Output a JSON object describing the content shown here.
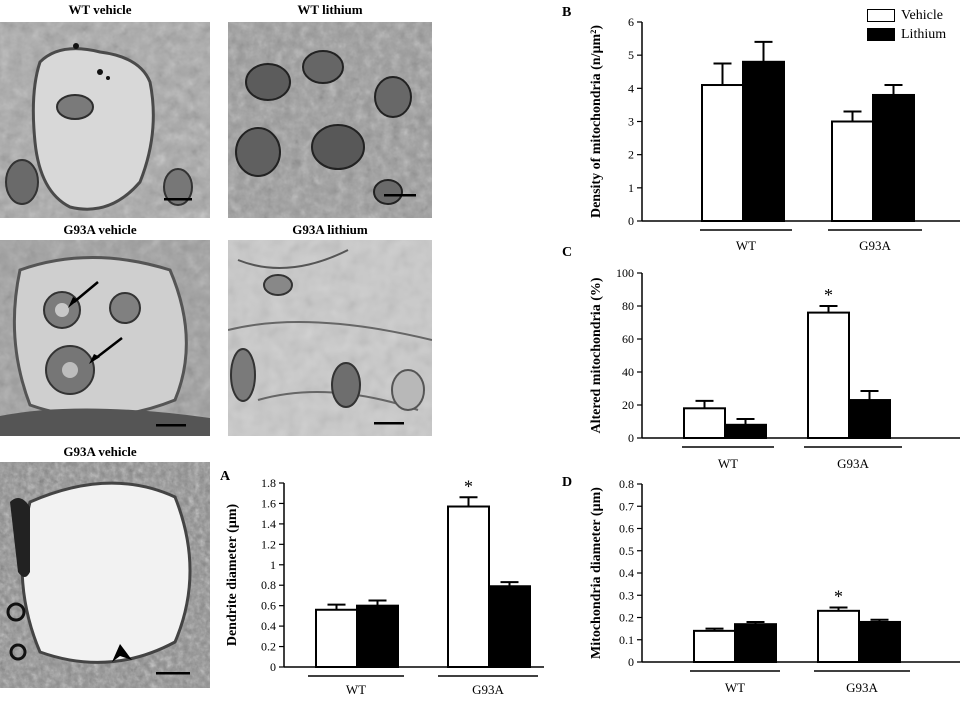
{
  "micrographs": {
    "wt_vehicle": {
      "title": "WT vehicle"
    },
    "wt_lithium": {
      "title": "WT lithium"
    },
    "g93a_vehicle": {
      "title": "G93A vehicle"
    },
    "g93a_lithium": {
      "title": "G93A lithium"
    },
    "g93a_vehicle_low": {
      "title": "G93A vehicle"
    }
  },
  "legend": {
    "items": [
      {
        "label": "Vehicle",
        "color": "#ffffff"
      },
      {
        "label": "Lithium",
        "color": "#000000"
      }
    ]
  },
  "chart_data": [
    {
      "id": "A",
      "type": "bar",
      "letter": "A",
      "groups": [
        "WT",
        "G93A"
      ],
      "series": [
        {
          "name": "Vehicle",
          "values": [
            0.56,
            1.57
          ],
          "errors": [
            0.05,
            0.09
          ]
        },
        {
          "name": "Lithium",
          "values": [
            0.6,
            0.79
          ],
          "errors": [
            0.05,
            0.04
          ]
        }
      ],
      "ylabel": "Dendrite diameter (µm)",
      "ylim": [
        0,
        1.8
      ],
      "yticks": [
        "0",
        "0.2",
        "0.4",
        "0.6",
        "0.8",
        "1",
        "1.2",
        "1.4",
        "1.6",
        "1.8"
      ],
      "significance": [
        {
          "group": 1,
          "series": 0,
          "label": "*"
        }
      ]
    },
    {
      "id": "B",
      "type": "bar",
      "letter": "B",
      "groups": [
        "WT",
        "G93A"
      ],
      "series": [
        {
          "name": "Vehicle",
          "values": [
            4.1,
            3.0
          ],
          "errors": [
            0.65,
            0.3
          ]
        },
        {
          "name": "Lithium",
          "values": [
            4.8,
            3.8
          ],
          "errors": [
            0.6,
            0.3
          ]
        }
      ],
      "ylabel": "Density of mitochondria (n/µm²)",
      "ylim": [
        0,
        6
      ],
      "yticks": [
        "0",
        "1",
        "2",
        "3",
        "4",
        "5",
        "6"
      ],
      "significance": []
    },
    {
      "id": "C",
      "type": "bar",
      "letter": "C",
      "groups": [
        "WT",
        "G93A"
      ],
      "series": [
        {
          "name": "Vehicle",
          "values": [
            18,
            76
          ],
          "errors": [
            4.5,
            4
          ]
        },
        {
          "name": "Lithium",
          "values": [
            8,
            23
          ],
          "errors": [
            3.5,
            5.5
          ]
        }
      ],
      "ylabel": "Altered mitochondria (%)",
      "ylim": [
        0,
        100
      ],
      "yticks": [
        "0",
        "20",
        "40",
        "60",
        "80",
        "100"
      ],
      "significance": [
        {
          "group": 1,
          "series": 0,
          "label": "*"
        }
      ]
    },
    {
      "id": "D",
      "type": "bar",
      "letter": "D",
      "groups": [
        "WT",
        "G93A"
      ],
      "series": [
        {
          "name": "Vehicle",
          "values": [
            0.14,
            0.23
          ],
          "errors": [
            0.01,
            0.015
          ]
        },
        {
          "name": "Lithium",
          "values": [
            0.17,
            0.18
          ],
          "errors": [
            0.01,
            0.01
          ]
        }
      ],
      "ylabel": "Mitochondria diameter (µm)",
      "ylim": [
        0,
        0.8
      ],
      "yticks": [
        "0",
        "0.1",
        "0.2",
        "0.3",
        "0.4",
        "0.5",
        "0.6",
        "0.7",
        "0.8"
      ],
      "significance": [
        {
          "group": 1,
          "series": 0,
          "label": "*"
        }
      ]
    }
  ]
}
